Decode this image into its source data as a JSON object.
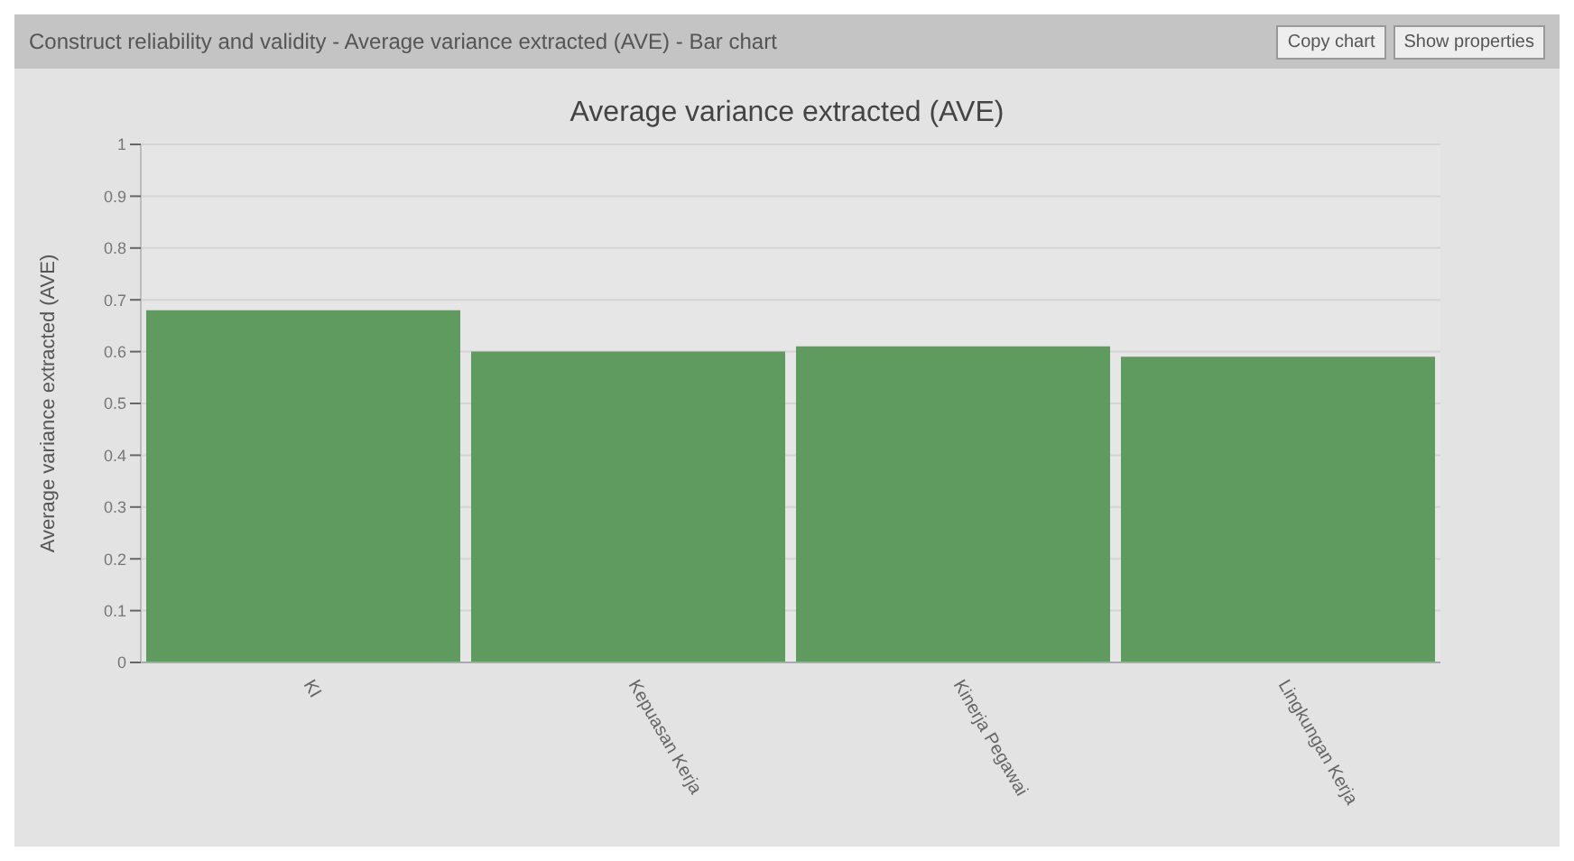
{
  "chart_data": {
    "type": "bar",
    "title": "Average variance extracted (AVE)",
    "ylabel": "Average variance extracted (AVE)",
    "annotations": [
      "Construct reliability and validity - Average variance extracted (AVE) - Bar chart",
      "Copy chart",
      "Show properties"
    ],
    "categories": [
      "KI",
      "Kepuasan Kerja",
      "Kinerja Pegawai",
      "Lingkungan Kerja"
    ],
    "values": [
      0.68,
      0.6,
      0.61,
      0.59
    ],
    "color": "#5f9a5f",
    "ylim": [
      0,
      1
    ],
    "yticks": [
      0,
      0.1,
      0.2,
      0.3,
      0.4,
      0.5,
      0.6,
      0.7,
      0.8,
      0.9,
      1
    ],
    "grid": "y"
  }
}
